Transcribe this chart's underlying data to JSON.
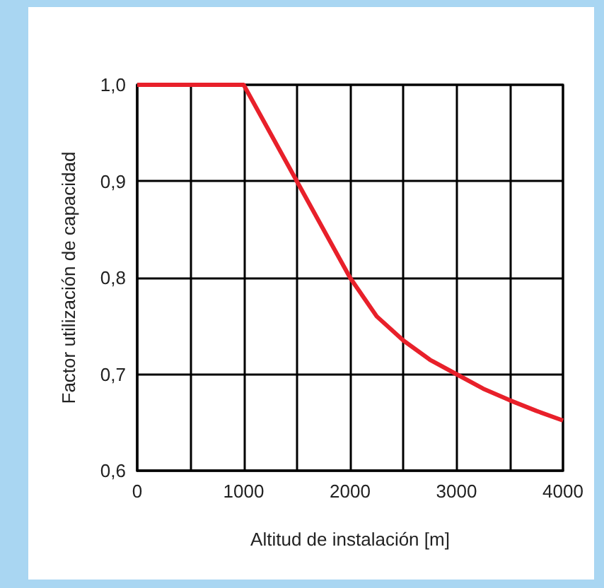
{
  "chart_data": {
    "type": "line",
    "xlabel": "Altitud de instalación [m]",
    "ylabel": "Factor utilización de capacidad",
    "x": [
      0,
      1000,
      1250,
      1500,
      1750,
      2000,
      2250,
      2500,
      2750,
      3000,
      3250,
      3500,
      3750,
      4000
    ],
    "series": [
      {
        "color": "#e8202a",
        "values": [
          1.0,
          1.0,
          0.95,
          0.9,
          0.85,
          0.8,
          0.76,
          0.735,
          0.715,
          0.7,
          0.685,
          0.673,
          0.662,
          0.652
        ]
      }
    ],
    "xlim": [
      0,
      4000
    ],
    "xticks": [
      0,
      {
        "value": 500,
        "label": null
      },
      1000,
      {
        "value": 1500,
        "label": null
      },
      2000,
      {
        "value": 2500,
        "label": null
      },
      3000,
      {
        "value": 3500,
        "label": null
      },
      4000
    ],
    "ylim": [
      0.6,
      1.0
    ],
    "yticks": [
      {
        "value": 0.6,
        "label": "0,6"
      },
      {
        "value": 0.7,
        "label": "0,7"
      },
      {
        "value": 0.8,
        "label": "0,8"
      },
      {
        "value": 0.9,
        "label": "0,9"
      },
      {
        "value": 1.0,
        "label": "1,0"
      }
    ],
    "grid": true,
    "marker": "none",
    "line_style": "solid"
  }
}
